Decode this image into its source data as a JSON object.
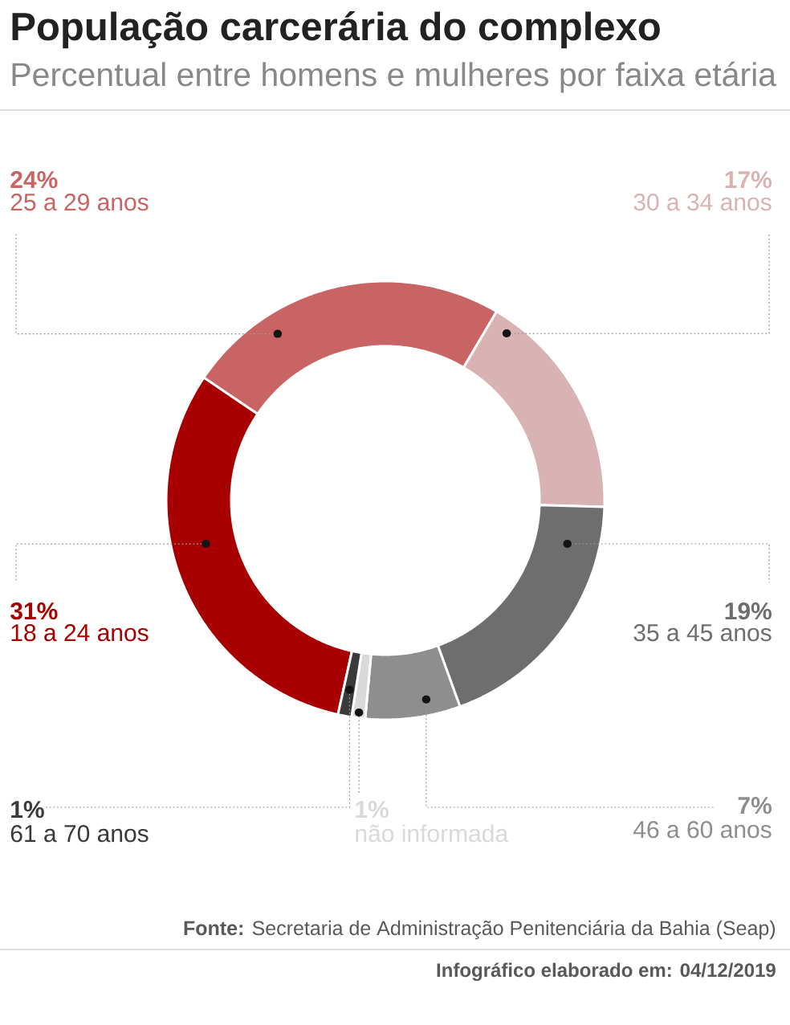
{
  "chart_data": {
    "type": "donut",
    "title": "População carcerária do complexo",
    "subtitle": "Percentual entre homens e mulheres por faixa etária",
    "categories": [
      "18 a 24 anos",
      "25 a 29 anos",
      "30 a 34 anos",
      "35 a 45 anos",
      "46 a 60 anos",
      "não informada",
      "61 a 70 anos"
    ],
    "values": [
      31,
      24,
      17,
      19,
      7,
      1,
      1
    ],
    "colors": [
      "#a80000",
      "#c96464",
      "#d9b3b3",
      "#6e6e6e",
      "#8e8e8e",
      "#d9d9d9",
      "#3a3a3a"
    ],
    "value_labels": [
      "31%",
      "24%",
      "17%",
      "19%",
      "7%",
      "1%",
      "1%"
    ],
    "annotations": [
      "**Fonte:** Secretaria de Administração Penitenciária da Bahia (Seap)",
      "Infográfico elaborado em: 04/12/2019"
    ]
  }
}
